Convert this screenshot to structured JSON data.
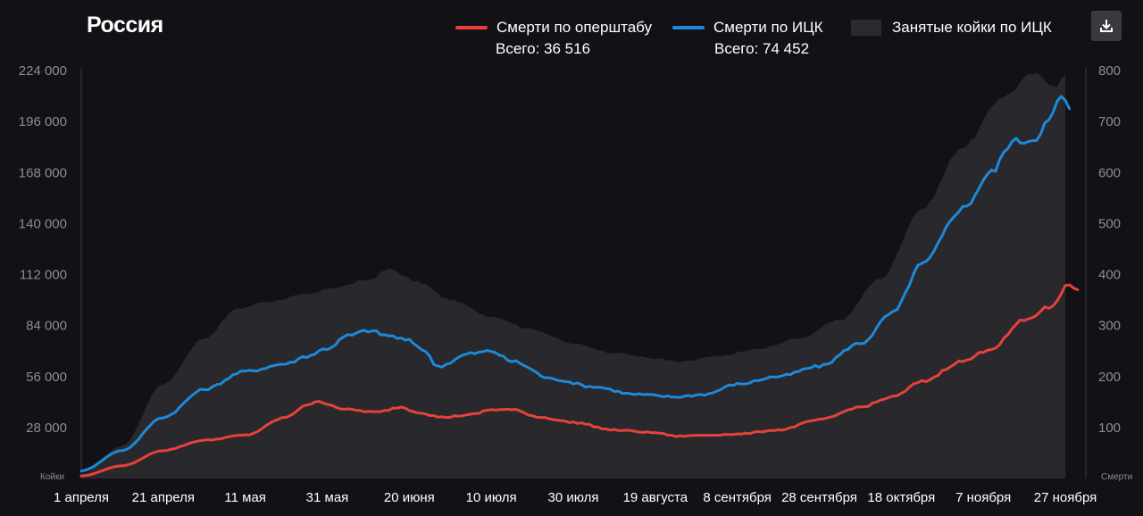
{
  "title": "Россия",
  "legend": [
    {
      "label": "Смерти по оперштабу",
      "total": "Всего: 36 516",
      "color": "#e6423b"
    },
    {
      "label": "Смерти по ИЦК",
      "total": "Всего: 74 452",
      "color": "#1f88d8"
    },
    {
      "label": "Занятые койки по ИЦК",
      "color": "#2a2a2d"
    }
  ],
  "download_icon": "download-icon",
  "chart_data": {
    "type": "line",
    "title": "Россия",
    "left_axis": {
      "label": "Койки",
      "ticks": [
        "224 000",
        "196 000",
        "168 000",
        "140 000",
        "112 000",
        "84 000",
        "56 000",
        "28 000"
      ],
      "ylim": [
        0,
        224000
      ]
    },
    "right_axis": {
      "label": "Смерти",
      "ticks": [
        "800",
        "700",
        "600",
        "500",
        "400",
        "300",
        "200",
        "100"
      ],
      "ylim": [
        0,
        800
      ]
    },
    "x_ticks": [
      "1 апреля",
      "21 апреля",
      "11 мая",
      "31 мая",
      "20 июня",
      "10 июля",
      "30 июля",
      "19 августа",
      "8 сентября",
      "28 сентября",
      "18 октября",
      "7 ноября",
      "27 ноября"
    ],
    "x_range_days": [
      0,
      240
    ],
    "series": [
      {
        "name": "Занятые койки по ИЦК",
        "type": "area",
        "axis": "left",
        "points": [
          [
            0,
            2500
          ],
          [
            10,
            18000
          ],
          [
            20,
            52000
          ],
          [
            30,
            77000
          ],
          [
            38,
            93000
          ],
          [
            45,
            97000
          ],
          [
            55,
            101000
          ],
          [
            62,
            105000
          ],
          [
            70,
            109000
          ],
          [
            75,
            115000
          ],
          [
            82,
            108000
          ],
          [
            90,
            98000
          ],
          [
            100,
            89000
          ],
          [
            110,
            82000
          ],
          [
            120,
            74000
          ],
          [
            130,
            69000
          ],
          [
            140,
            66000
          ],
          [
            146,
            64000
          ],
          [
            155,
            67000
          ],
          [
            165,
            71000
          ],
          [
            175,
            77000
          ],
          [
            185,
            87000
          ],
          [
            195,
            110000
          ],
          [
            205,
            148000
          ],
          [
            215,
            182000
          ],
          [
            225,
            210000
          ],
          [
            232,
            222000
          ],
          [
            238,
            216000
          ],
          [
            240,
            222000
          ]
        ]
      },
      {
        "name": "Смерти по ИЦК",
        "type": "line",
        "axis": "right",
        "points": [
          [
            0,
            15
          ],
          [
            10,
            55
          ],
          [
            20,
            120
          ],
          [
            30,
            175
          ],
          [
            40,
            210
          ],
          [
            50,
            225
          ],
          [
            55,
            240
          ],
          [
            60,
            255
          ],
          [
            65,
            280
          ],
          [
            70,
            290
          ],
          [
            75,
            280
          ],
          [
            80,
            270
          ],
          [
            83,
            255
          ],
          [
            87,
            220
          ],
          [
            95,
            245
          ],
          [
            100,
            250
          ],
          [
            105,
            230
          ],
          [
            115,
            195
          ],
          [
            125,
            180
          ],
          [
            135,
            165
          ],
          [
            145,
            160
          ],
          [
            152,
            165
          ],
          [
            160,
            185
          ],
          [
            170,
            200
          ],
          [
            180,
            220
          ],
          [
            190,
            265
          ],
          [
            198,
            325
          ],
          [
            205,
            420
          ],
          [
            215,
            530
          ],
          [
            222,
            600
          ],
          [
            227,
            660
          ],
          [
            232,
            665
          ],
          [
            236,
            700
          ],
          [
            239,
            750
          ],
          [
            241,
            725
          ]
        ]
      },
      {
        "name": "Смерти по оперштабу",
        "type": "line",
        "axis": "right",
        "points": [
          [
            0,
            5
          ],
          [
            10,
            25
          ],
          [
            20,
            55
          ],
          [
            30,
            75
          ],
          [
            40,
            85
          ],
          [
            50,
            120
          ],
          [
            55,
            145
          ],
          [
            58,
            150
          ],
          [
            65,
            135
          ],
          [
            72,
            130
          ],
          [
            78,
            140
          ],
          [
            82,
            130
          ],
          [
            88,
            120
          ],
          [
            95,
            125
          ],
          [
            100,
            135
          ],
          [
            105,
            135
          ],
          [
            112,
            120
          ],
          [
            120,
            110
          ],
          [
            130,
            95
          ],
          [
            140,
            90
          ],
          [
            145,
            83
          ],
          [
            152,
            85
          ],
          [
            160,
            87
          ],
          [
            170,
            95
          ],
          [
            180,
            115
          ],
          [
            190,
            140
          ],
          [
            198,
            160
          ],
          [
            205,
            190
          ],
          [
            215,
            230
          ],
          [
            222,
            255
          ],
          [
            230,
            310
          ],
          [
            236,
            335
          ],
          [
            241,
            380
          ],
          [
            243,
            370
          ]
        ]
      }
    ]
  }
}
